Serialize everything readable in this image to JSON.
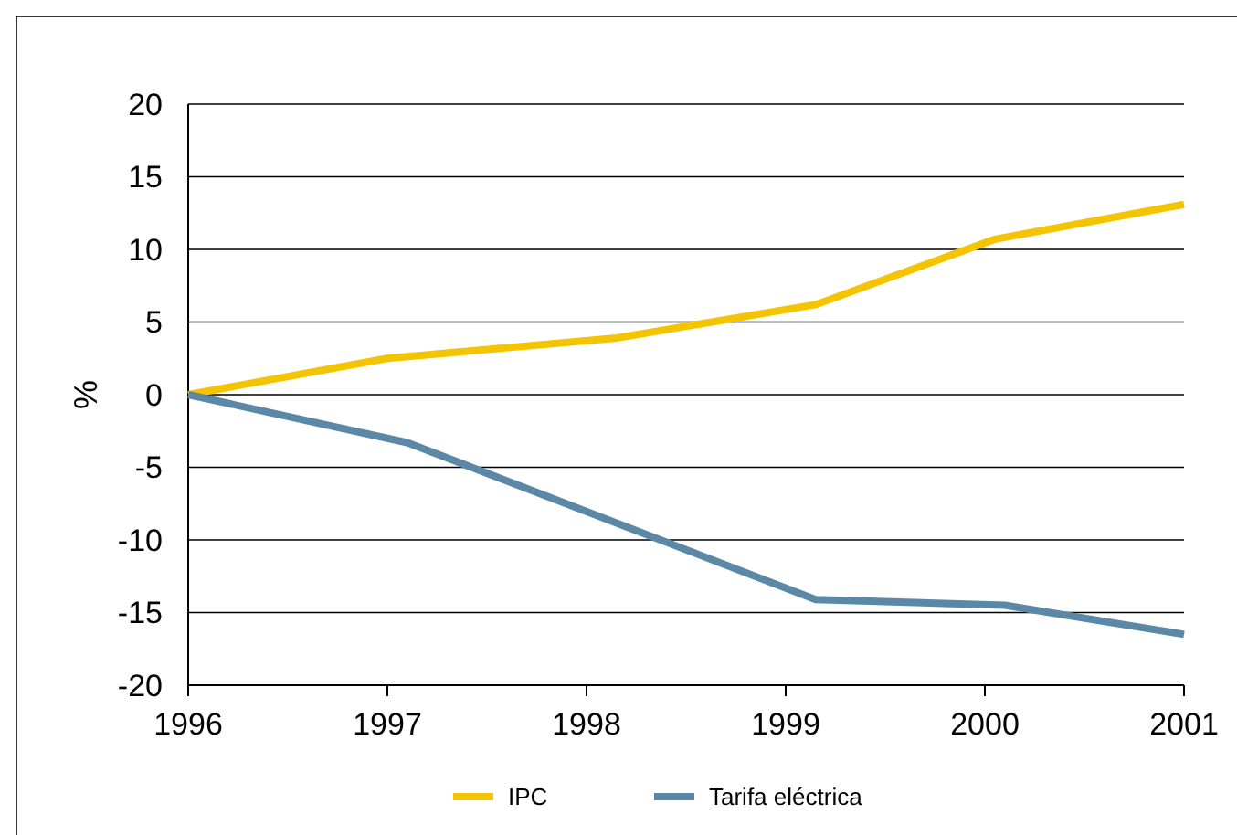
{
  "chart_data": {
    "type": "line",
    "ylabel": "%",
    "xlim": [
      1996,
      2001
    ],
    "xticks": [
      1996,
      1997,
      1998,
      1999,
      2000,
      2001
    ],
    "ylim": [
      -20,
      20
    ],
    "yticks": [
      -20,
      -15,
      -10,
      -5,
      0,
      5,
      10,
      15,
      20
    ],
    "grid": "y",
    "legend": "bottom",
    "series": [
      {
        "name": "IPC",
        "color": "#f5c400",
        "x": [
          1996,
          1997,
          1998.15,
          1999.15,
          2000.05,
          2001
        ],
        "values": [
          0,
          2.5,
          3.9,
          6.2,
          10.7,
          13.1
        ]
      },
      {
        "name": "Tarifa eléctrica",
        "color": "#5b88a6",
        "x": [
          1996,
          1997.1,
          1999.15,
          2000.1,
          2001
        ],
        "values": [
          0,
          -3.3,
          -14.1,
          -14.5,
          -16.5
        ]
      }
    ]
  }
}
